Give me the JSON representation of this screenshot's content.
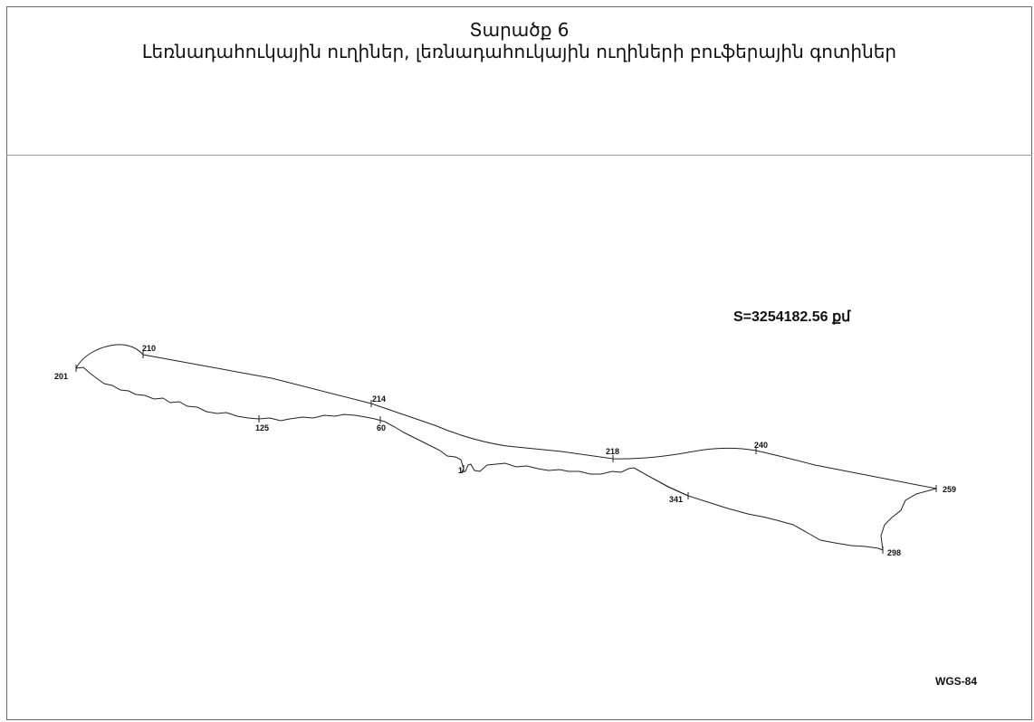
{
  "header": {
    "title": "Տարածք 6",
    "subtitle": "Լեռնադահուկային ուղիներ, լեռնադահուկային ուղիների բուֆերային գոտիներ"
  },
  "map": {
    "area_text": "S=3254182.56 քմ",
    "crs": "WGS-84",
    "line_color": "#222222",
    "points": [
      {
        "id": "p-201",
        "label": "201"
      },
      {
        "id": "p-210",
        "label": "210"
      },
      {
        "id": "p-214",
        "label": "214"
      },
      {
        "id": "p-125",
        "label": "125"
      },
      {
        "id": "p-60",
        "label": "60"
      },
      {
        "id": "p-1",
        "label": "1"
      },
      {
        "id": "p-218",
        "label": "218"
      },
      {
        "id": "p-240",
        "label": "240"
      },
      {
        "id": "p-341",
        "label": "341"
      },
      {
        "id": "p-259",
        "label": "259"
      },
      {
        "id": "p-298",
        "label": "298"
      }
    ]
  }
}
